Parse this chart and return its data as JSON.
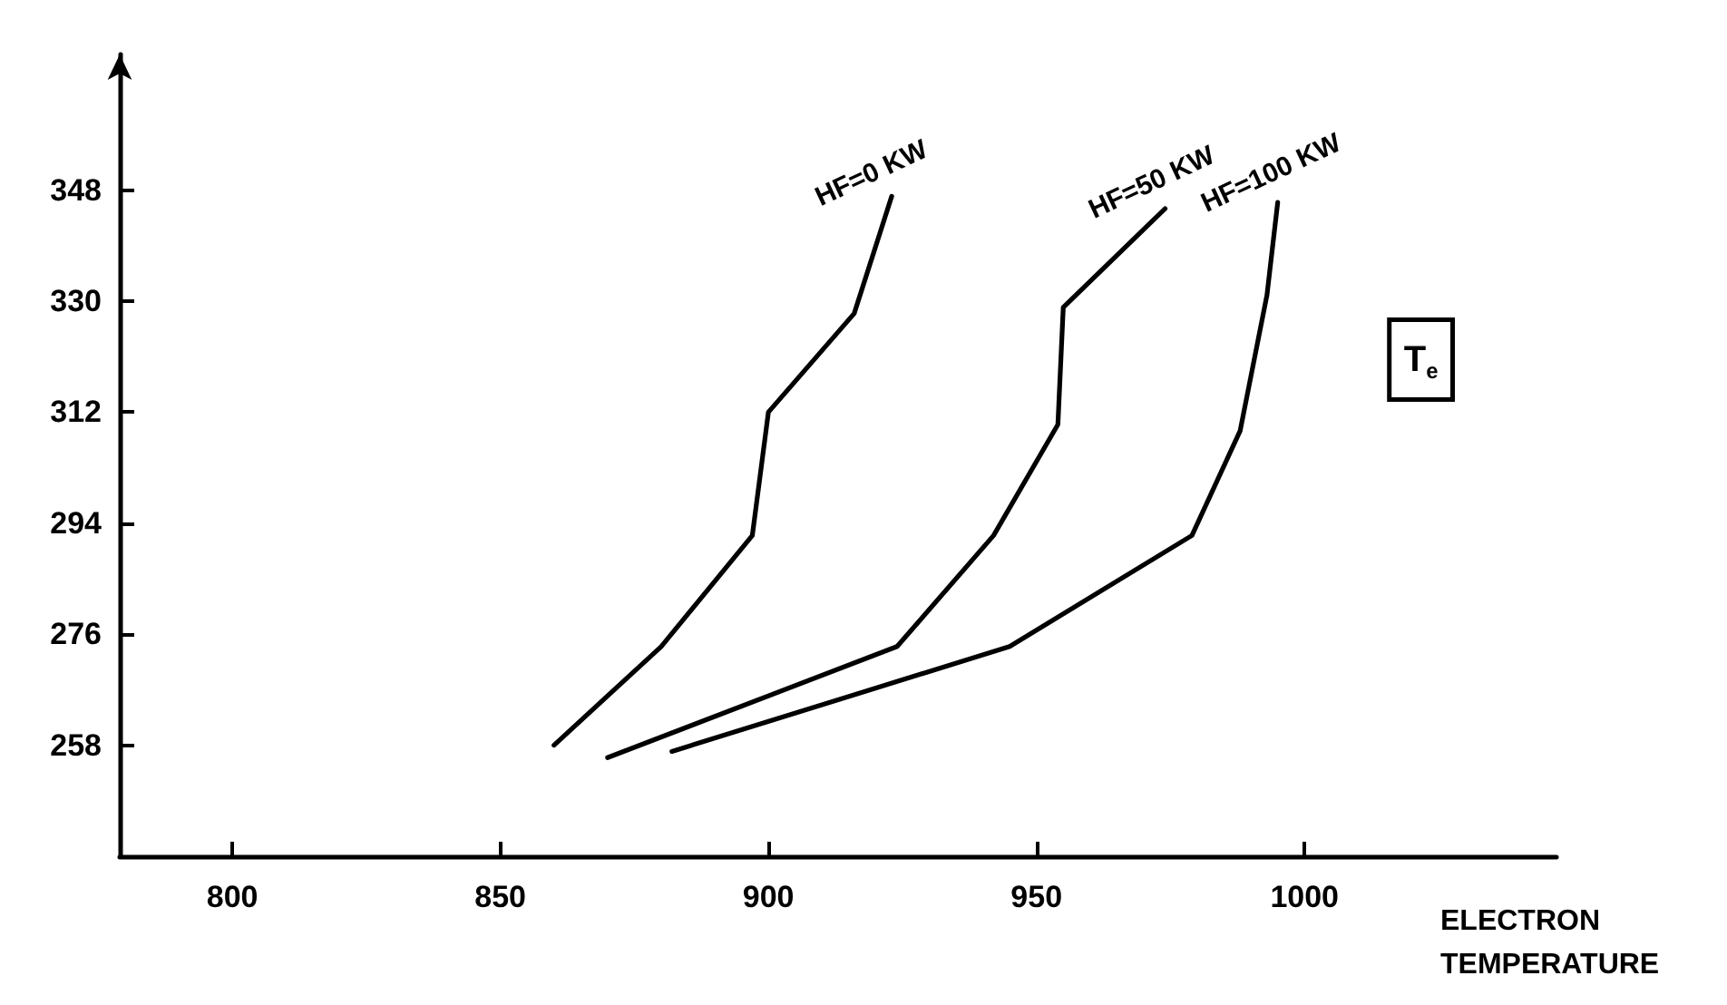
{
  "chart_data": {
    "type": "line",
    "xlabel": "ELECTRON TEMPERATURE",
    "annotations": [
      "T$_{e}$"
    ],
    "xlim": [
      779,
      1047
    ],
    "xticks": [
      800,
      850,
      900,
      950,
      1000
    ],
    "ylim": [
      240,
      370
    ],
    "yticks": [
      258,
      276,
      294,
      312,
      330,
      348
    ],
    "grid": false,
    "legend": false,
    "marker": "none",
    "line_style": "solid",
    "series": [
      {
        "name": "HF=0 KW",
        "color": "#000000",
        "x": [
          860,
          880,
          897,
          900,
          916,
          923
        ],
        "values": [
          258,
          274,
          292,
          312,
          328,
          347
        ]
      },
      {
        "name": "HF=50 KW",
        "color": "#000000",
        "x": [
          870,
          924,
          942,
          954,
          955,
          974
        ],
        "values": [
          256,
          274,
          292,
          310,
          329,
          345
        ]
      },
      {
        "name": "HF=100 KW",
        "color": "#000000",
        "x": [
          882,
          945,
          979,
          988,
          993,
          995
        ],
        "values": [
          257,
          274,
          292,
          309,
          331,
          346
        ]
      }
    ]
  }
}
